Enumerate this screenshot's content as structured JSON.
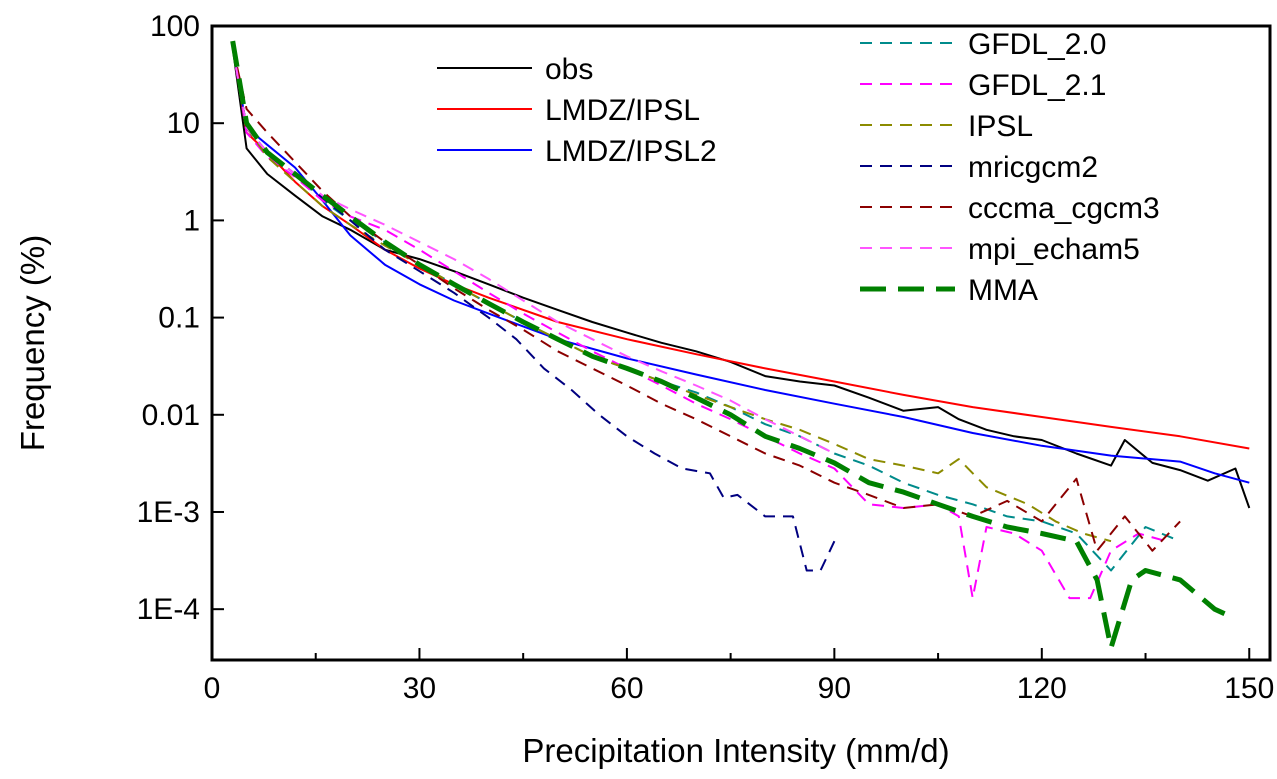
{
  "chart_data": {
    "type": "line",
    "xlabel": "Precipitation Intensity (mm/d)",
    "ylabel": "Frequency (%)",
    "xlim": [
      0,
      153
    ],
    "ylim": [
      3e-05,
      100
    ],
    "yscale": "log",
    "x_ticks": [
      {
        "value": 0,
        "label": "0"
      },
      {
        "value": 30,
        "label": "30"
      },
      {
        "value": 60,
        "label": "60"
      },
      {
        "value": 90,
        "label": "90"
      },
      {
        "value": 120,
        "label": "120"
      },
      {
        "value": 150,
        "label": "150"
      }
    ],
    "y_ticks": [
      {
        "value": 100,
        "label": "100"
      },
      {
        "value": 10,
        "label": "10"
      },
      {
        "value": 1,
        "label": "1"
      },
      {
        "value": 0.1,
        "label": "0.1"
      },
      {
        "value": 0.01,
        "label": "0.01"
      },
      {
        "value": 0.001,
        "label": "1E-3"
      },
      {
        "value": 0.0001,
        "label": "1E-4"
      }
    ],
    "grid": false,
    "legend_position": "top-right",
    "series": [
      {
        "name": "obs",
        "color": "#000000",
        "dash": "solid",
        "width": 2,
        "x": [
          3,
          5,
          8,
          12,
          16,
          20,
          25,
          30,
          35,
          40,
          45,
          50,
          55,
          60,
          65,
          70,
          75,
          80,
          85,
          90,
          95,
          100,
          105,
          108,
          112,
          116,
          120,
          125,
          130,
          132,
          136,
          140,
          144,
          148,
          150
        ],
        "y": [
          60,
          5.5,
          3.0,
          1.8,
          1.1,
          0.8,
          0.5,
          0.4,
          0.3,
          0.22,
          0.16,
          0.12,
          0.09,
          0.07,
          0.055,
          0.045,
          0.035,
          0.025,
          0.022,
          0.02,
          0.015,
          0.011,
          0.012,
          0.009,
          0.007,
          0.006,
          0.0055,
          0.004,
          0.003,
          0.0055,
          0.0032,
          0.0027,
          0.0021,
          0.0028,
          0.0011
        ]
      },
      {
        "name": "LMDZ/IPSL",
        "color": "#ff0000",
        "dash": "solid",
        "width": 2,
        "x": [
          3,
          5,
          8,
          12,
          16,
          20,
          25,
          30,
          35,
          40,
          50,
          60,
          70,
          80,
          90,
          100,
          110,
          120,
          130,
          140,
          150
        ],
        "y": [
          60,
          8.0,
          5.0,
          2.5,
          1.4,
          0.9,
          0.5,
          0.32,
          0.22,
          0.16,
          0.09,
          0.06,
          0.042,
          0.03,
          0.022,
          0.016,
          0.012,
          0.0095,
          0.0075,
          0.006,
          0.0045
        ]
      },
      {
        "name": "LMDZ/IPSL2",
        "color": "#0000ff",
        "dash": "solid",
        "width": 2,
        "x": [
          3,
          5,
          8,
          12,
          16,
          20,
          25,
          30,
          35,
          40,
          50,
          60,
          70,
          80,
          90,
          100,
          110,
          120,
          130,
          140,
          145,
          150
        ],
        "y": [
          60,
          9.0,
          6.0,
          3.5,
          1.6,
          0.7,
          0.35,
          0.22,
          0.15,
          0.11,
          0.06,
          0.038,
          0.026,
          0.018,
          0.013,
          0.0095,
          0.0065,
          0.0048,
          0.0038,
          0.0033,
          0.0025,
          0.002
        ]
      },
      {
        "name": "GFDL_2.0",
        "color": "#008b8b",
        "dash": "dashed",
        "width": 2,
        "x": [
          3,
          5,
          8,
          12,
          16,
          20,
          25,
          30,
          35,
          40,
          45,
          50,
          55,
          60,
          65,
          70,
          75,
          80,
          85,
          90,
          95,
          100,
          105,
          110,
          115,
          120,
          125,
          130,
          135,
          140
        ],
        "y": [
          60,
          9.0,
          5.0,
          3.0,
          1.6,
          1.0,
          0.6,
          0.35,
          0.22,
          0.14,
          0.09,
          0.06,
          0.04,
          0.03,
          0.022,
          0.017,
          0.012,
          0.008,
          0.006,
          0.004,
          0.003,
          0.002,
          0.0015,
          0.0012,
          0.0009,
          0.0008,
          0.0006,
          0.00025,
          0.0007,
          0.0005
        ]
      },
      {
        "name": "GFDL_2.1",
        "color": "#ff00ff",
        "dash": "dashed",
        "width": 2,
        "x": [
          3,
          5,
          8,
          12,
          16,
          20,
          25,
          30,
          35,
          40,
          45,
          50,
          55,
          60,
          65,
          70,
          75,
          80,
          85,
          90,
          95,
          100,
          105,
          108,
          110,
          112,
          116,
          120,
          124,
          127,
          130,
          134,
          138
        ],
        "y": [
          60,
          8.0,
          4.5,
          2.8,
          1.6,
          1.1,
          0.8,
          0.5,
          0.3,
          0.18,
          0.11,
          0.07,
          0.045,
          0.03,
          0.02,
          0.013,
          0.009,
          0.006,
          0.004,
          0.0028,
          0.0012,
          0.0011,
          0.0012,
          0.0009,
          0.00013,
          0.0007,
          0.0006,
          0.0004,
          0.00013,
          0.00013,
          0.0004,
          0.0006,
          0.0005
        ]
      },
      {
        "name": "IPSL",
        "color": "#8b8b00",
        "dash": "dashed",
        "width": 2,
        "x": [
          3,
          5,
          8,
          12,
          16,
          20,
          25,
          30,
          35,
          40,
          45,
          50,
          55,
          60,
          65,
          70,
          75,
          80,
          85,
          90,
          95,
          100,
          105,
          108,
          112,
          118,
          122,
          126,
          130
        ],
        "y": [
          60,
          9.0,
          4.5,
          2.5,
          1.4,
          0.9,
          0.55,
          0.35,
          0.22,
          0.14,
          0.09,
          0.06,
          0.04,
          0.03,
          0.022,
          0.016,
          0.012,
          0.009,
          0.007,
          0.005,
          0.0035,
          0.003,
          0.0025,
          0.0035,
          0.0018,
          0.0012,
          0.0008,
          0.0006,
          0.0005
        ]
      },
      {
        "name": "mricgcm2",
        "color": "#000080",
        "dash": "dashed",
        "width": 2,
        "x": [
          3,
          5,
          8,
          12,
          16,
          20,
          25,
          30,
          35,
          40,
          44,
          48,
          52,
          56,
          60,
          64,
          68,
          72,
          74,
          76,
          80,
          84,
          86,
          88,
          90
        ],
        "y": [
          60,
          9.0,
          5.0,
          3.0,
          1.7,
          1.0,
          0.5,
          0.3,
          0.18,
          0.1,
          0.06,
          0.03,
          0.018,
          0.01,
          0.006,
          0.004,
          0.0028,
          0.0025,
          0.0014,
          0.0015,
          0.0009,
          0.0009,
          0.00025,
          0.00025,
          0.0005
        ]
      },
      {
        "name": "cccma_cgcm3",
        "color": "#8b0000",
        "dash": "dashed",
        "width": 2,
        "x": [
          3,
          5,
          8,
          12,
          16,
          20,
          25,
          30,
          35,
          40,
          45,
          50,
          55,
          60,
          65,
          70,
          75,
          80,
          85,
          90,
          95,
          100,
          105,
          110,
          115,
          120,
          125,
          128,
          132,
          136,
          140
        ],
        "y": [
          60,
          14,
          8.0,
          4.0,
          2.0,
          1.1,
          0.6,
          0.35,
          0.2,
          0.12,
          0.075,
          0.045,
          0.03,
          0.02,
          0.013,
          0.009,
          0.006,
          0.004,
          0.003,
          0.002,
          0.0015,
          0.0011,
          0.0012,
          0.0009,
          0.0013,
          0.0008,
          0.0022,
          0.0004,
          0.0009,
          0.0004,
          0.0008
        ]
      },
      {
        "name": "mpi_echam5",
        "color": "#ff55ff",
        "dash": "dashed",
        "width": 2,
        "x": [
          3,
          5,
          8,
          12,
          16,
          20,
          25,
          30,
          35,
          40,
          45,
          50,
          55,
          60,
          65,
          70,
          75,
          80,
          85,
          90
        ],
        "y": [
          60,
          9.0,
          5.0,
          3.0,
          1.8,
          1.3,
          0.9,
          0.6,
          0.4,
          0.25,
          0.15,
          0.09,
          0.06,
          0.04,
          0.028,
          0.02,
          0.014,
          0.009,
          0.006,
          0.004
        ]
      },
      {
        "name": "MMA",
        "color": "#008000",
        "dash": "dashed",
        "width": 5,
        "x": [
          3,
          5,
          8,
          12,
          16,
          20,
          25,
          30,
          35,
          40,
          45,
          50,
          55,
          60,
          65,
          70,
          75,
          80,
          85,
          90,
          95,
          100,
          105,
          110,
          115,
          120,
          125,
          128,
          130,
          133,
          135,
          140,
          145,
          148
        ],
        "y": [
          70,
          10,
          5.0,
          3.0,
          1.8,
          1.1,
          0.6,
          0.35,
          0.22,
          0.14,
          0.09,
          0.06,
          0.04,
          0.03,
          0.022,
          0.015,
          0.01,
          0.006,
          0.0045,
          0.0032,
          0.002,
          0.0016,
          0.0012,
          0.0009,
          0.0007,
          0.0006,
          0.0005,
          0.0002,
          4e-05,
          0.0002,
          0.00025,
          0.0002,
          0.0001,
          8e-05
        ]
      }
    ]
  }
}
